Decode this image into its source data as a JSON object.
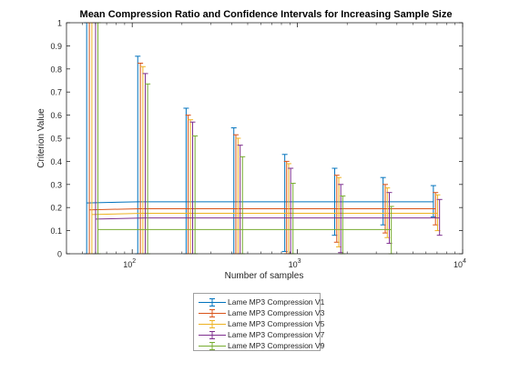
{
  "chart_data": {
    "type": "errorbar",
    "title": "Mean Compression Ratio and Confidence Intervals for Increasing Sample Size",
    "xlabel": "Number of samples",
    "ylabel": "Criterion Value",
    "xscale": "log",
    "xlim": [
      40,
      10000
    ],
    "ylim": [
      0,
      1
    ],
    "xticks": [
      100,
      1000,
      10000
    ],
    "xtick_labels": [
      {
        "base": "10",
        "exp": "2"
      },
      {
        "base": "10",
        "exp": "3"
      },
      {
        "base": "10",
        "exp": "4"
      }
    ],
    "yticks": [
      0,
      0.1,
      0.2,
      0.3,
      0.4,
      0.5,
      0.6,
      0.7,
      0.8,
      0.9,
      1
    ],
    "ytick_labels": [
      "0",
      "0.1",
      "0.2",
      "0.3",
      "0.4",
      "0.5",
      "0.6",
      "0.7",
      "0.8",
      "0.9",
      "1"
    ],
    "grid": false,
    "legend_position": "bottom-outside",
    "series": [
      {
        "name": "Lame MP3 Compression V1",
        "color": "#0072bd",
        "x": [
          53,
          108,
          212,
          412,
          838,
          1680,
          3300,
          6650
        ],
        "y": [
          0.22,
          0.225,
          0.225,
          0.225,
          0.225,
          0.225,
          0.225,
          0.225
        ],
        "upper": [
          1.0,
          0.855,
          0.63,
          0.545,
          0.43,
          0.37,
          0.33,
          0.295
        ],
        "lower": [
          0.0,
          0.0,
          0.0,
          0.0,
          0.01,
          0.08,
          0.125,
          0.16
        ]
      },
      {
        "name": "Lame MP3 Compression V3",
        "color": "#d95319",
        "x": [
          55,
          112,
          218,
          424,
          860,
          1730,
          3400,
          6850
        ],
        "y": [
          0.19,
          0.195,
          0.195,
          0.195,
          0.195,
          0.195,
          0.195,
          0.195
        ],
        "upper": [
          1.0,
          0.825,
          0.6,
          0.515,
          0.4,
          0.34,
          0.3,
          0.265
        ],
        "lower": [
          0.0,
          0.0,
          0.0,
          0.0,
          0.0,
          0.05,
          0.09,
          0.125
        ]
      },
      {
        "name": "Lame MP3 Compression V5",
        "color": "#edb120",
        "x": [
          57,
          116,
          225,
          437,
          885,
          1780,
          3500,
          7050
        ],
        "y": [
          0.17,
          0.175,
          0.175,
          0.175,
          0.175,
          0.175,
          0.175,
          0.175
        ],
        "upper": [
          1.0,
          0.81,
          0.58,
          0.5,
          0.39,
          0.33,
          0.285,
          0.255
        ],
        "lower": [
          0.0,
          0.0,
          0.0,
          0.0,
          0.0,
          0.03,
          0.07,
          0.1
        ]
      },
      {
        "name": "Lame MP3 Compression V7",
        "color": "#7e2f8e",
        "x": [
          60,
          120,
          232,
          450,
          910,
          1830,
          3600,
          7250
        ],
        "y": [
          0.15,
          0.155,
          0.155,
          0.155,
          0.155,
          0.155,
          0.155,
          0.155
        ],
        "upper": [
          1.0,
          0.78,
          0.57,
          0.47,
          0.37,
          0.3,
          0.265,
          0.235
        ],
        "lower": [
          0.0,
          0.0,
          0.0,
          0.0,
          0.0,
          0.005,
          0.045,
          0.08
        ]
      },
      {
        "name": "Lame MP3 Compression V9",
        "color": "#77ac30",
        "x": [
          62,
          124,
          240,
          465,
          940,
          1880,
          3700,
          null
        ],
        "y": [
          0.105,
          0.105,
          0.105,
          0.105,
          0.105,
          0.105,
          0.105,
          null
        ],
        "upper": [
          1.0,
          0.735,
          0.51,
          0.42,
          0.305,
          0.25,
          0.205,
          null
        ],
        "lower": [
          0.0,
          0.0,
          0.0,
          0.0,
          0.0,
          0.0,
          0.0,
          null
        ]
      }
    ]
  }
}
